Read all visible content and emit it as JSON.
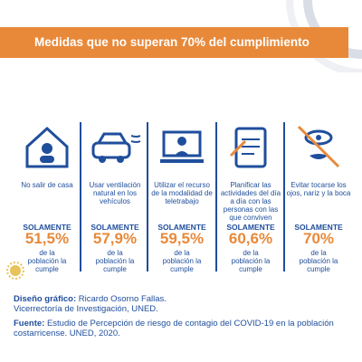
{
  "header": {
    "title": "Medidas que no superan 70% del cumplimiento"
  },
  "items": [
    {
      "label": "No salir de casa",
      "prefix": "SOLAMENTE",
      "value": "51,5%",
      "suffix": "de la población la cumple"
    },
    {
      "label": "Usar ventilación natural en los vehículos",
      "prefix": "SOLAMENTE",
      "value": "57,9%",
      "suffix": "de la población la cumple"
    },
    {
      "label": "Utilizar el recurso de la modalidad de teletrabajo",
      "prefix": "SOLAMENTE",
      "value": "59,5%",
      "suffix": "de la población la cumple"
    },
    {
      "label": "Planificar las actividades del día a día con las personas con las que conviven",
      "prefix": "SOLAMENTE",
      "value": "60,6%",
      "suffix": "de la población la cumple"
    },
    {
      "label": "Evitar tocarse los ojos, nariz y la boca",
      "prefix": "SOLAMENTE",
      "value": "70%",
      "suffix": "de la población la cumple"
    }
  ],
  "footer": {
    "design_label": "Diseño gráfico:",
    "design_name": "Ricardo Osorno Fallas.",
    "design_org": "Vicerrectoría de Investigación, UNED.",
    "source_label": "Fuente:",
    "source_text": "Estudio de Percepción de riesgo de contagio del COVID-19 en la población costarricense. UNED, 2020."
  }
}
